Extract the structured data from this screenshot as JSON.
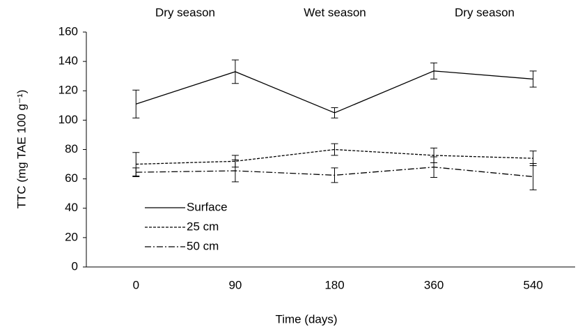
{
  "chart_data": {
    "type": "line",
    "xlabel": "Time (days)",
    "ylabel": "TTC (mg TAE 100 g⁻¹)",
    "annotations": [
      "Dry season",
      "Wet season",
      "Dry season"
    ],
    "categories": [
      "0",
      "90",
      "180",
      "360",
      "540"
    ],
    "series": [
      {
        "name": "Surface",
        "color": "#000000",
        "dash": "none",
        "values": [
          111,
          133,
          105,
          133.5,
          128
        ],
        "errors": [
          9.5,
          8,
          3.5,
          5.5,
          5.5
        ]
      },
      {
        "name": "25 cm",
        "color": "#000000",
        "dash": "4,2",
        "values": [
          70,
          72,
          80,
          76,
          74
        ],
        "errors": [
          8,
          4,
          4,
          5,
          5
        ]
      },
      {
        "name": "50 cm",
        "color": "#000000",
        "dash": "9,3,2,3",
        "values": [
          64.5,
          65.5,
          62.5,
          68,
          61.5
        ],
        "errors": [
          3,
          7.5,
          5,
          7,
          9
        ]
      }
    ],
    "ylim": [
      0,
      160
    ],
    "yticks": [
      0,
      20,
      40,
      60,
      80,
      100,
      120,
      140,
      160
    ],
    "grid": false,
    "legend": "lower left"
  }
}
